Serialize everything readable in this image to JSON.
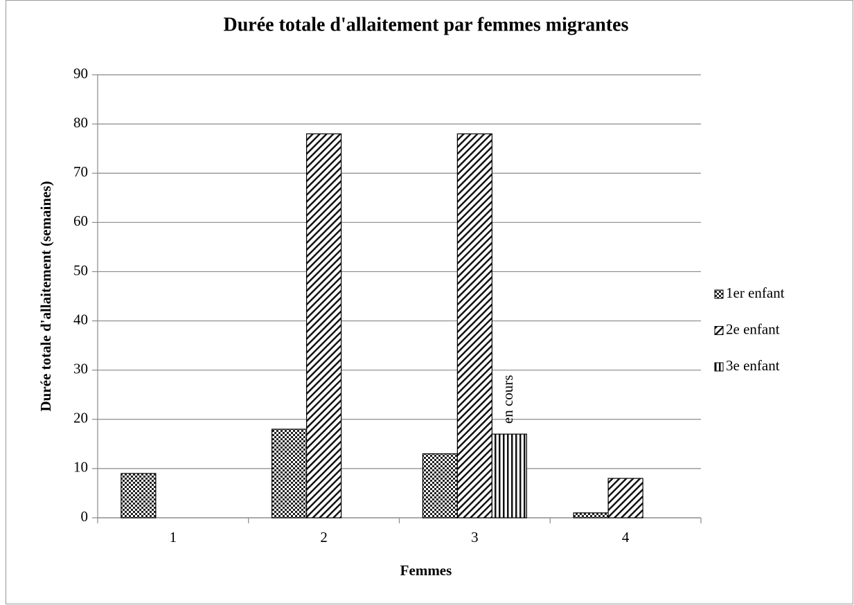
{
  "chart_data": {
    "type": "bar",
    "title": "Durée totale d'allaitement par femmes migrantes",
    "x_label": "Femmes",
    "y_label": "Durée totale d'allaitement (semaines)",
    "categories": [
      "1",
      "2",
      "3",
      "4"
    ],
    "series": [
      {
        "name": "1er enfant",
        "pattern": "checker",
        "values": [
          9,
          18,
          13,
          1
        ]
      },
      {
        "name": "2e enfant",
        "pattern": "diagonal",
        "values": [
          null,
          78,
          78,
          8
        ]
      },
      {
        "name": "3e enfant",
        "pattern": "vertical",
        "values": [
          null,
          null,
          17,
          null
        ]
      }
    ],
    "annotation": "en cours",
    "ylim": [
      0,
      90
    ],
    "yticks": [
      0,
      10,
      20,
      30,
      40,
      50,
      60,
      70,
      80,
      90
    ],
    "grid": true,
    "legend": "right"
  }
}
